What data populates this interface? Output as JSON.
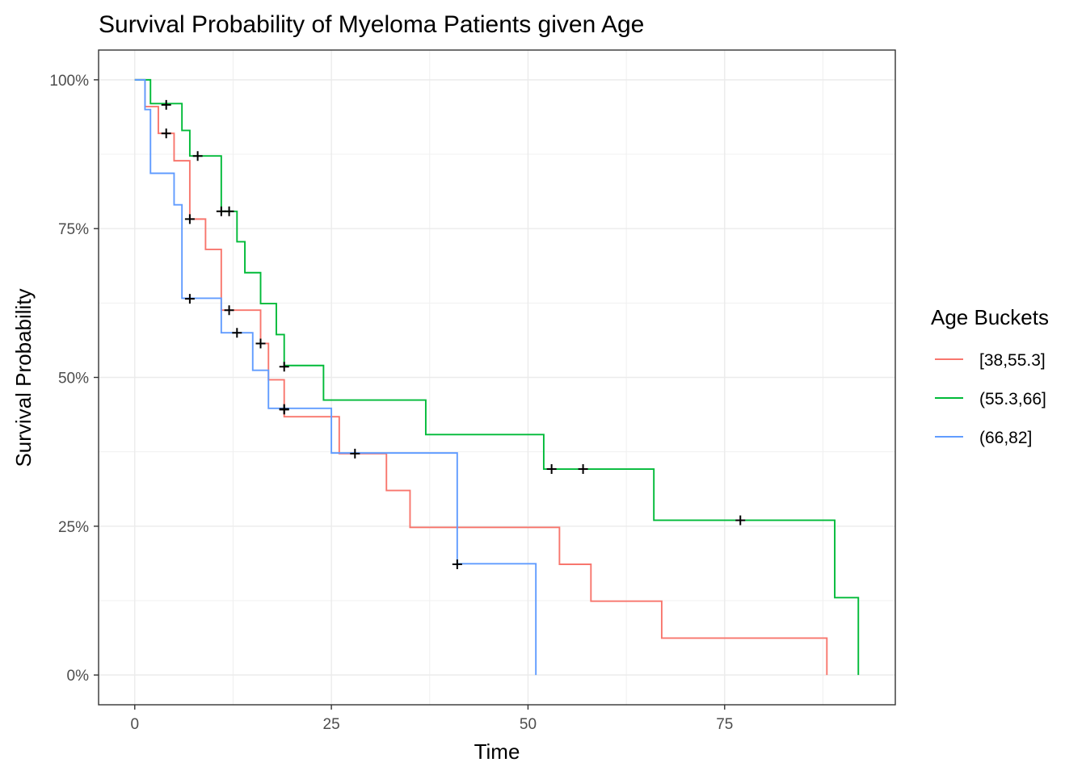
{
  "chart_data": {
    "type": "line",
    "subtype": "step",
    "title": "Survival Probability of Myeloma Patients given Age",
    "xlabel": "Time",
    "ylabel": "Survival Probability",
    "xlim": [
      -4.6,
      96.7
    ],
    "ylim": [
      -0.05,
      1.05
    ],
    "xticks": [
      0,
      25,
      50,
      75
    ],
    "xtick_labels": [
      "0",
      "25",
      "50",
      "75"
    ],
    "yticks": [
      0,
      0.25,
      0.5,
      0.75,
      1.0
    ],
    "ytick_labels": [
      "0%",
      "25%",
      "50%",
      "75%",
      "100%"
    ],
    "grid": true,
    "legend": {
      "title": "Age Buckets",
      "position": "right"
    },
    "censor_marker": "+",
    "series": [
      {
        "name": "[38,55.3]",
        "color": "#F8766D",
        "steps": [
          [
            0,
            1.0
          ],
          [
            1.3,
            0.955
          ],
          [
            3,
            0.91
          ],
          [
            5,
            0.864
          ],
          [
            7,
            0.766
          ],
          [
            9,
            0.715
          ],
          [
            11,
            0.613
          ],
          [
            16,
            0.557
          ],
          [
            17,
            0.496
          ],
          [
            19,
            0.434
          ],
          [
            26,
            0.372
          ],
          [
            32,
            0.31
          ],
          [
            35,
            0.248
          ],
          [
            54,
            0.186
          ],
          [
            58,
            0.124
          ],
          [
            67,
            0.062
          ],
          [
            88,
            0.0
          ]
        ],
        "censored": [
          [
            4,
            0.91
          ],
          [
            7,
            0.766
          ],
          [
            12,
            0.613
          ],
          [
            16,
            0.557
          ],
          [
            19,
            0.447
          ],
          [
            28,
            0.372
          ]
        ]
      },
      {
        "name": "(55.3,66]",
        "color": "#00BA38",
        "steps": [
          [
            0,
            1.0
          ],
          [
            2,
            0.96
          ],
          [
            6,
            0.915
          ],
          [
            7,
            0.872
          ],
          [
            11,
            0.779
          ],
          [
            13,
            0.728
          ],
          [
            14,
            0.676
          ],
          [
            16,
            0.624
          ],
          [
            18,
            0.572
          ],
          [
            19,
            0.52
          ],
          [
            24,
            0.462
          ],
          [
            37,
            0.404
          ],
          [
            52,
            0.346
          ],
          [
            66,
            0.26
          ],
          [
            89,
            0.13
          ],
          [
            92,
            0.0
          ]
        ],
        "censored": [
          [
            4,
            0.958
          ],
          [
            8,
            0.872
          ],
          [
            11,
            0.779
          ],
          [
            12,
            0.779
          ],
          [
            19,
            0.518
          ],
          [
            53,
            0.346
          ],
          [
            57,
            0.346
          ],
          [
            77,
            0.26
          ]
        ]
      },
      {
        "name": "(66,82]",
        "color": "#619CFF",
        "steps": [
          [
            0,
            1.0
          ],
          [
            1.3,
            0.95
          ],
          [
            2,
            0.843
          ],
          [
            5,
            0.79
          ],
          [
            6,
            0.633
          ],
          [
            11,
            0.575
          ],
          [
            15,
            0.512
          ],
          [
            17,
            0.448
          ],
          [
            25,
            0.373
          ],
          [
            41,
            0.187
          ],
          [
            51,
            0.0
          ]
        ],
        "censored": [
          [
            7,
            0.632
          ],
          [
            13,
            0.575
          ],
          [
            19,
            0.446
          ],
          [
            41,
            0.186
          ]
        ]
      }
    ]
  }
}
